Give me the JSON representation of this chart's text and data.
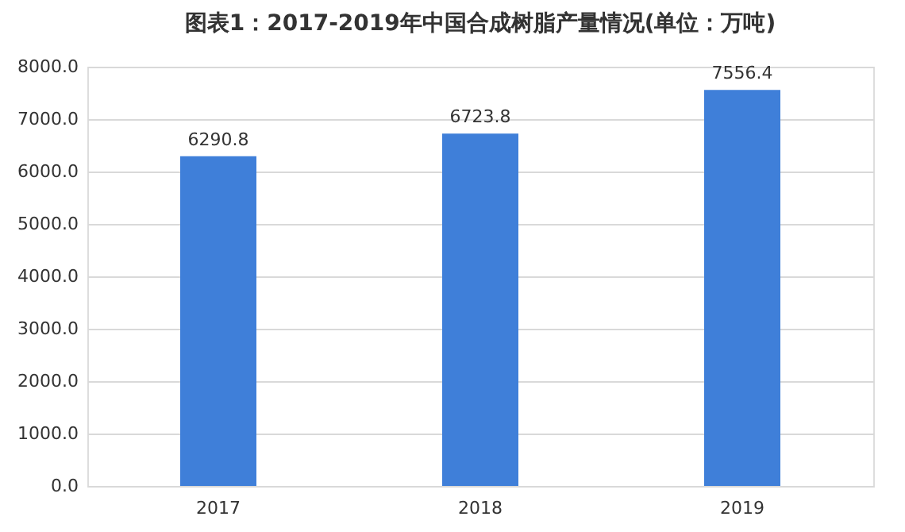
{
  "chart_data": {
    "type": "bar",
    "title": "图表1：2017-2019年中国合成树脂产量情况(单位：万吨)",
    "categories": [
      "2017",
      "2018",
      "2019"
    ],
    "values": [
      6290.8,
      6723.8,
      7556.4
    ],
    "color": "#3f7fd9",
    "ylim": [
      0,
      8000
    ],
    "yticks": [
      {
        "value": 0,
        "label": "0.0"
      },
      {
        "value": 1000,
        "label": "1000.0"
      },
      {
        "value": 2000,
        "label": "2000.0"
      },
      {
        "value": 3000,
        "label": "3000.0"
      },
      {
        "value": 4000,
        "label": "4000.0"
      },
      {
        "value": 5000,
        "label": "5000.0"
      },
      {
        "value": 6000,
        "label": "6000.0"
      },
      {
        "value": 7000,
        "label": "7000.0"
      },
      {
        "value": 8000,
        "label": "8000.0"
      }
    ],
    "grid": "y",
    "data_labels": true
  }
}
